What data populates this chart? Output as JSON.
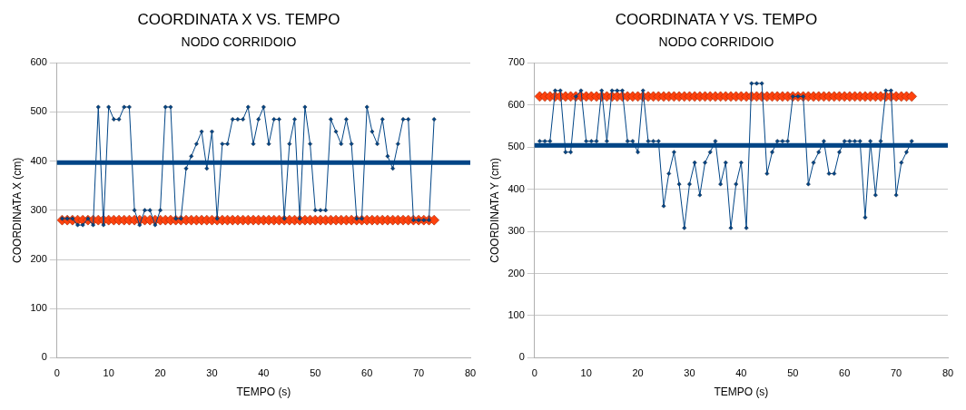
{
  "chart_data": [
    {
      "type": "line",
      "title": "COORDINATA X VS. TEMPO",
      "subtitle": "NODO CORRIDOIO",
      "xlabel": "TEMPO (s)",
      "ylabel": "COORDINATA X (cm)",
      "x": [
        1,
        2,
        3,
        4,
        5,
        6,
        7,
        8,
        9,
        10,
        11,
        12,
        13,
        14,
        15,
        16,
        17,
        18,
        19,
        20,
        21,
        22,
        23,
        24,
        25,
        26,
        27,
        28,
        29,
        30,
        31,
        32,
        33,
        34,
        35,
        36,
        37,
        38,
        39,
        40,
        41,
        42,
        43,
        44,
        45,
        46,
        47,
        48,
        49,
        50,
        51,
        52,
        53,
        54,
        55,
        56,
        57,
        58,
        59,
        60,
        61,
        62,
        63,
        64,
        65,
        66,
        67,
        68,
        69,
        70,
        71,
        72,
        73
      ],
      "series": [
        {
          "color": "#004586",
          "marker": "diamond",
          "values": [
            283,
            283,
            283,
            270,
            270,
            283,
            270,
            510,
            270,
            510,
            485,
            485,
            510,
            510,
            300,
            270,
            300,
            300,
            270,
            300,
            510,
            510,
            283,
            283,
            385,
            410,
            435,
            460,
            385,
            460,
            283,
            435,
            435,
            485,
            485,
            485,
            510,
            435,
            485,
            510,
            435,
            485,
            485,
            283,
            435,
            485,
            283,
            510,
            435,
            300,
            300,
            300,
            485,
            460,
            435,
            485,
            435,
            283,
            283,
            510,
            460,
            435,
            485,
            410,
            385,
            435,
            485,
            485,
            280,
            280,
            280,
            280,
            485
          ]
        },
        {
          "type": "scatter",
          "color": "#ff420e",
          "marker": "diamond",
          "values": [
            280,
            280,
            280,
            280,
            280,
            280,
            280,
            280,
            280,
            280,
            280,
            280,
            280,
            280,
            280,
            280,
            280,
            280,
            280,
            280,
            280,
            280,
            280,
            280,
            280,
            280,
            280,
            280,
            280,
            280,
            280,
            280,
            280,
            280,
            280,
            280,
            280,
            280,
            280,
            280,
            280,
            280,
            280,
            280,
            280,
            280,
            280,
            280,
            280,
            280,
            280,
            280,
            280,
            280,
            280,
            280,
            280,
            280,
            280,
            280,
            280,
            280,
            280,
            280,
            280,
            280,
            280,
            280,
            280,
            280,
            280,
            280,
            280
          ]
        }
      ],
      "ref_lines": [
        {
          "axis": "y",
          "value": 397,
          "color": "#004586"
        }
      ],
      "xlim": [
        0,
        80
      ],
      "xticks": [
        0,
        10,
        20,
        30,
        40,
        50,
        60,
        70,
        80
      ],
      "ylim": [
        0,
        600
      ],
      "yticks": [
        0,
        100,
        200,
        300,
        400,
        500,
        600
      ],
      "grid": "y",
      "legend": false
    },
    {
      "type": "line",
      "title": "COORDINATA Y VS. TEMPO",
      "subtitle": "NODO CORRIDOIO",
      "xlabel": "TEMPO (s)",
      "ylabel": "COORDINATA Y (cm)",
      "x": [
        1,
        2,
        3,
        4,
        5,
        6,
        7,
        8,
        9,
        10,
        11,
        12,
        13,
        14,
        15,
        16,
        17,
        18,
        19,
        20,
        21,
        22,
        23,
        24,
        25,
        26,
        27,
        28,
        29,
        30,
        31,
        32,
        33,
        34,
        35,
        36,
        37,
        38,
        39,
        40,
        41,
        42,
        43,
        44,
        45,
        46,
        47,
        48,
        49,
        50,
        51,
        52,
        53,
        54,
        55,
        56,
        57,
        58,
        59,
        60,
        61,
        62,
        63,
        64,
        65,
        66,
        67,
        68,
        69,
        70,
        71,
        72,
        73
      ],
      "series": [
        {
          "color": "#004586",
          "marker": "diamond",
          "values": [
            514,
            514,
            514,
            634,
            634,
            488,
            488,
            620,
            634,
            514,
            514,
            514,
            634,
            514,
            634,
            634,
            634,
            514,
            514,
            488,
            634,
            514,
            514,
            514,
            360,
            437,
            488,
            412,
            308,
            412,
            463,
            386,
            463,
            488,
            514,
            412,
            463,
            308,
            412,
            463,
            308,
            651,
            651,
            651,
            437,
            488,
            514,
            514,
            514,
            620,
            620,
            620,
            412,
            463,
            488,
            514,
            437,
            437,
            488,
            514,
            514,
            514,
            514,
            333,
            514,
            386,
            514,
            634,
            634,
            386,
            463,
            488,
            514
          ]
        },
        {
          "type": "scatter",
          "color": "#ff420e",
          "marker": "diamond",
          "values": [
            620,
            620,
            620,
            620,
            620,
            620,
            620,
            620,
            620,
            620,
            620,
            620,
            620,
            620,
            620,
            620,
            620,
            620,
            620,
            620,
            620,
            620,
            620,
            620,
            620,
            620,
            620,
            620,
            620,
            620,
            620,
            620,
            620,
            620,
            620,
            620,
            620,
            620,
            620,
            620,
            620,
            620,
            620,
            620,
            620,
            620,
            620,
            620,
            620,
            620,
            620,
            620,
            620,
            620,
            620,
            620,
            620,
            620,
            620,
            620,
            620,
            620,
            620,
            620,
            620,
            620,
            620,
            620,
            620,
            620,
            620,
            620,
            620
          ]
        }
      ],
      "ref_lines": [
        {
          "axis": "y",
          "value": 504,
          "color": "#004586"
        }
      ],
      "xlim": [
        0,
        80
      ],
      "xticks": [
        0,
        10,
        20,
        30,
        40,
        50,
        60,
        70,
        80
      ],
      "ylim": [
        0,
        700
      ],
      "yticks": [
        0,
        100,
        200,
        300,
        400,
        500,
        600,
        700
      ],
      "grid": "y",
      "legend": false
    }
  ]
}
